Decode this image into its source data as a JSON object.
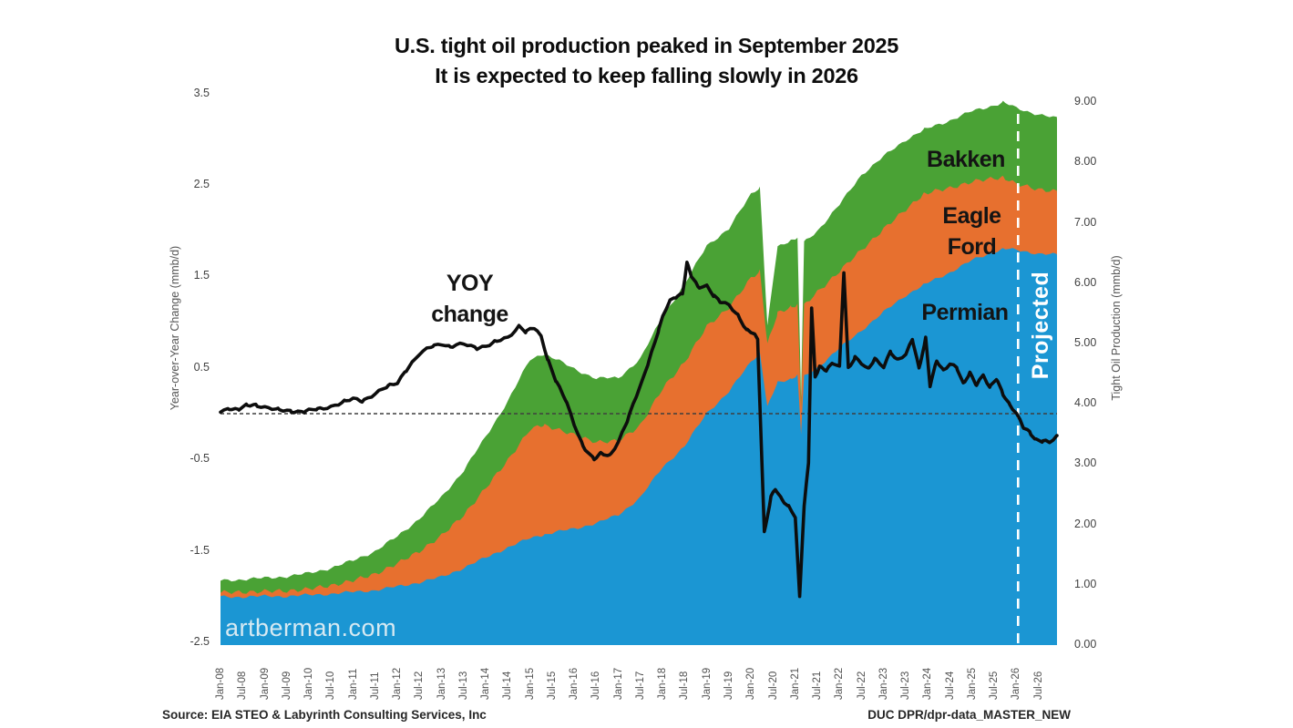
{
  "title": {
    "line1": "U.S. tight oil production peaked in September 2025",
    "line2": "It is expected to keep falling slowly in 2026"
  },
  "left_axis": {
    "title": "Year-over-Year Change (mmb/d)",
    "tick_labels": [
      "3.5",
      "2.5",
      "1.5",
      "0.5",
      "-0.5",
      "-1.5",
      "-2.5"
    ],
    "tick_values": [
      3.5,
      2.5,
      1.5,
      0.5,
      -0.5,
      -1.5,
      -2.5
    ],
    "range": [
      -2.5,
      3.5
    ]
  },
  "right_axis": {
    "title": "Tight Oil Production (mmb/d)",
    "tick_labels": [
      "9.00",
      "8.00",
      "7.00",
      "6.00",
      "5.00",
      "4.00",
      "3.00",
      "2.00",
      "1.00",
      "0.00"
    ],
    "tick_values": [
      9,
      8,
      7,
      6,
      5,
      4,
      3,
      2,
      1,
      0
    ],
    "range": [
      0,
      9
    ]
  },
  "x_axis": {
    "tick_labels": [
      "Jan-08",
      "Jul-08",
      "Jan-09",
      "Jul-09",
      "Jan-10",
      "Jul-10",
      "Jan-11",
      "Jul-11",
      "Jan-12",
      "Jul-12",
      "Jan-13",
      "Jul-13",
      "Jan-14",
      "Jul-14",
      "Jan-15",
      "Jul-15",
      "Jan-16",
      "Jul-16",
      "Jan-17",
      "Jul-17",
      "Jan-18",
      "Jul-18",
      "Jan-19",
      "Jul-19",
      "Jan-20",
      "Jul-20",
      "Jan-21",
      "Jul-21",
      "Jan-22",
      "Jul-22",
      "Jan-23",
      "Jul-23",
      "Jan-24",
      "Jul-24",
      "Jan-25",
      "Jul-25",
      "Jan-26",
      "Jul-26"
    ],
    "start_year": 2008.0,
    "tick_step_years": 0.5
  },
  "annotations": {
    "yoy_line1": "YOY",
    "yoy_line2": "change",
    "bakken": "Bakken",
    "eagle_line1": "Eagle",
    "eagle_line2": "Ford",
    "permian": "Permian",
    "projected": "Projected",
    "watermark": "artberman.com"
  },
  "footer": {
    "source": "Source: EIA STEO & Labyrinth Consulting Services, Inc",
    "file_ref": "DUC DPR/dpr-data_MASTER_NEW"
  },
  "colors": {
    "permian": "#1b96d3",
    "eagle_ford": "#e7702f",
    "bakken": "#4aa235",
    "yoy_line": "#0d0d0d",
    "zero_line": "#3f3f3f",
    "projected_line": "#ffffff",
    "watermark": "#d6e9f2"
  },
  "chart_data": {
    "type": "area",
    "stacked": true,
    "units": "mmb/d",
    "x_units": "decimal years (Jan-08 = 2008.0)",
    "left_axis_range": [
      -2.5,
      3.5
    ],
    "right_axis_range": [
      0,
      9
    ],
    "grid": false,
    "legend_position": "labels on areas",
    "projected_start_x": 2026.04,
    "zero_reference_line_y": 0,
    "x": [
      2008.0,
      2008.5,
      2009.0,
      2009.5,
      2010.0,
      2010.5,
      2011.0,
      2011.5,
      2012.0,
      2012.5,
      2013.0,
      2013.5,
      2014.0,
      2014.5,
      2015.0,
      2015.3,
      2015.5,
      2016.0,
      2016.5,
      2017.0,
      2017.5,
      2018.0,
      2018.5,
      2019.0,
      2019.5,
      2020.0,
      2020.2,
      2020.37,
      2020.6,
      2020.9,
      2021.05,
      2021.13,
      2021.2,
      2021.5,
      2022.0,
      2022.5,
      2023.0,
      2023.5,
      2023.9,
      2024.5,
      2025.0,
      2025.5,
      2025.7,
      2026.0,
      2026.5,
      2026.92
    ],
    "series": [
      {
        "name": "Permian",
        "axis": "right",
        "values": [
          0.8,
          0.8,
          0.81,
          0.81,
          0.83,
          0.85,
          0.88,
          0.91,
          0.97,
          1.04,
          1.13,
          1.28,
          1.45,
          1.62,
          1.77,
          1.83,
          1.86,
          1.93,
          2.02,
          2.16,
          2.45,
          2.95,
          3.3,
          3.85,
          4.2,
          4.7,
          4.85,
          3.95,
          4.35,
          4.42,
          4.48,
          3.5,
          4.45,
          4.6,
          4.92,
          5.22,
          5.52,
          5.8,
          5.97,
          6.18,
          6.38,
          6.52,
          6.57,
          6.55,
          6.49,
          6.47
        ]
      },
      {
        "name": "Eagle Ford",
        "axis": "right",
        "values": [
          0.07,
          0.08,
          0.08,
          0.09,
          0.1,
          0.14,
          0.19,
          0.27,
          0.38,
          0.52,
          0.68,
          0.88,
          1.15,
          1.45,
          1.8,
          1.82,
          1.75,
          1.55,
          1.35,
          1.22,
          1.2,
          1.3,
          1.4,
          1.43,
          1.4,
          1.38,
          1.35,
          1.05,
          1.15,
          1.18,
          1.18,
          0.45,
          1.18,
          1.25,
          1.28,
          1.33,
          1.38,
          1.42,
          1.51,
          1.4,
          1.3,
          1.22,
          1.19,
          1.09,
          1.07,
          1.05
        ]
      },
      {
        "name": "Bakken",
        "axis": "right",
        "values": [
          0.2,
          0.21,
          0.22,
          0.24,
          0.26,
          0.29,
          0.33,
          0.38,
          0.45,
          0.54,
          0.64,
          0.74,
          0.85,
          0.98,
          1.16,
          1.18,
          1.16,
          1.1,
          1.05,
          1.05,
          1.1,
          1.2,
          1.28,
          1.35,
          1.3,
          1.4,
          1.4,
          0.3,
          1.1,
          1.12,
          1.1,
          0.15,
          1.05,
          1.02,
          1.1,
          1.25,
          1.2,
          1.16,
          1.06,
          1.12,
          1.17,
          1.21,
          1.24,
          1.26,
          1.24,
          1.21
        ]
      }
    ],
    "yoy_line": {
      "name": "YOY change",
      "axis": "left",
      "x": [
        2008.0,
        2008.2,
        2008.4,
        2008.6,
        2008.8,
        2009.0,
        2009.3,
        2009.6,
        2009.9,
        2010.2,
        2010.5,
        2010.8,
        2011.0,
        2011.2,
        2011.5,
        2011.8,
        2012.0,
        2012.2,
        2012.5,
        2012.8,
        2013.0,
        2013.2,
        2013.5,
        2013.8,
        2014.0,
        2014.2,
        2014.5,
        2014.75,
        2014.9,
        2015.1,
        2015.25,
        2015.4,
        2015.6,
        2015.8,
        2016.0,
        2016.2,
        2016.45,
        2016.6,
        2016.8,
        2017.0,
        2017.2,
        2017.4,
        2017.5,
        2017.7,
        2017.9,
        2018.0,
        2018.15,
        2018.3,
        2018.45,
        2018.55,
        2018.65,
        2018.8,
        2019.0,
        2019.15,
        2019.3,
        2019.5,
        2019.7,
        2019.9,
        2020.05,
        2020.15,
        2020.3,
        2020.45,
        2020.55,
        2020.7,
        2020.85,
        2021.0,
        2021.1,
        2021.2,
        2021.3,
        2021.37,
        2021.45,
        2021.55,
        2021.7,
        2021.85,
        2022.0,
        2022.1,
        2022.2,
        2022.35,
        2022.5,
        2022.65,
        2022.8,
        2023.0,
        2023.15,
        2023.3,
        2023.5,
        2023.65,
        2023.8,
        2023.95,
        2024.05,
        2024.2,
        2024.35,
        2024.5,
        2024.65,
        2024.8,
        2024.95,
        2025.1,
        2025.25,
        2025.4,
        2025.55,
        2025.7,
        2025.85,
        2026.0,
        2026.15,
        2026.3,
        2026.45,
        2026.6,
        2026.75,
        2026.92
      ],
      "values": [
        0.03,
        0.06,
        0.04,
        0.09,
        0.1,
        0.07,
        0.04,
        0.03,
        0.02,
        0.05,
        0.08,
        0.13,
        0.16,
        0.14,
        0.22,
        0.3,
        0.34,
        0.48,
        0.65,
        0.74,
        0.77,
        0.73,
        0.76,
        0.72,
        0.74,
        0.78,
        0.83,
        0.96,
        0.9,
        0.93,
        0.84,
        0.6,
        0.35,
        0.15,
        -0.12,
        -0.35,
        -0.5,
        -0.44,
        -0.46,
        -0.3,
        -0.08,
        0.18,
        0.3,
        0.6,
        0.9,
        1.05,
        1.22,
        1.28,
        1.32,
        1.65,
        1.5,
        1.38,
        1.4,
        1.3,
        1.22,
        1.18,
        1.08,
        0.92,
        0.88,
        0.8,
        -1.3,
        -0.9,
        -0.82,
        -0.95,
        -1.02,
        -1.12,
        -2.0,
        -1.0,
        -0.55,
        1.15,
        0.4,
        0.52,
        0.48,
        0.55,
        0.5,
        1.55,
        0.5,
        0.62,
        0.55,
        0.48,
        0.6,
        0.52,
        0.68,
        0.58,
        0.64,
        0.82,
        0.5,
        0.82,
        0.3,
        0.58,
        0.48,
        0.55,
        0.5,
        0.32,
        0.45,
        0.32,
        0.42,
        0.28,
        0.38,
        0.22,
        0.1,
        0.0,
        -0.15,
        -0.2,
        -0.28,
        -0.3,
        -0.32,
        -0.25
      ]
    }
  }
}
